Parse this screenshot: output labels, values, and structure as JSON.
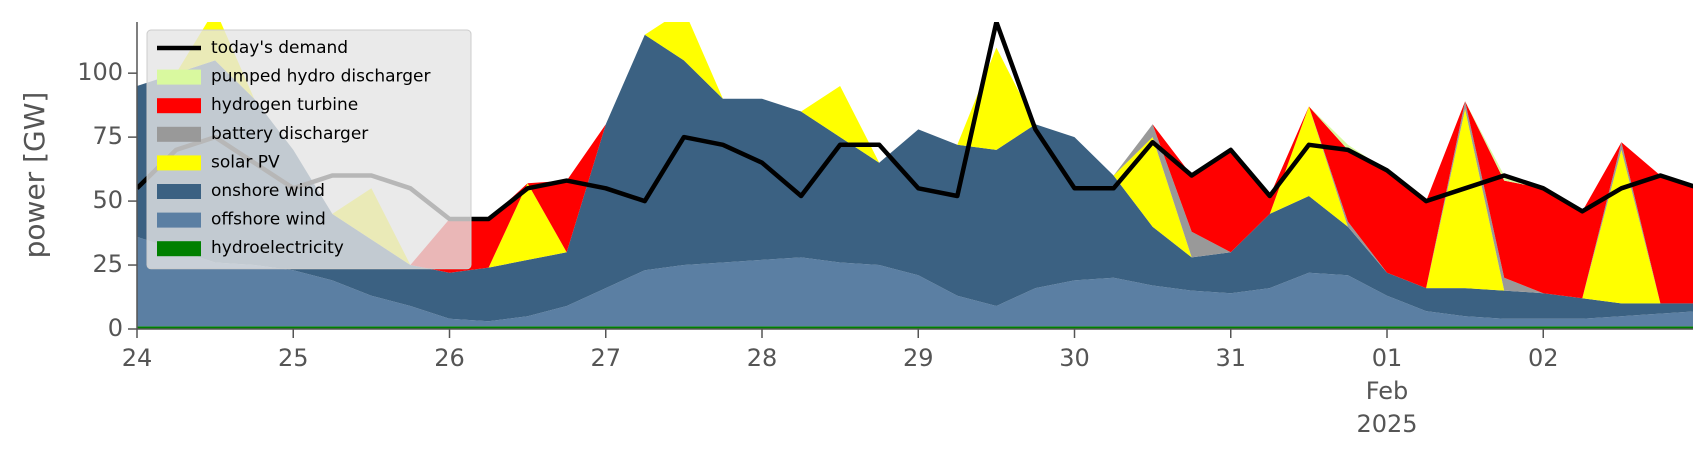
{
  "chart_data": {
    "type": "stacked-area",
    "ylabel": "power [GW]",
    "x": [
      "2025-01-24T00:00",
      "2025-01-24T06:00",
      "2025-01-24T12:00",
      "2025-01-24T18:00",
      "2025-01-25T00:00",
      "2025-01-25T06:00",
      "2025-01-25T12:00",
      "2025-01-25T18:00",
      "2025-01-26T00:00",
      "2025-01-26T06:00",
      "2025-01-26T12:00",
      "2025-01-26T18:00",
      "2025-01-27T00:00",
      "2025-01-27T06:00",
      "2025-01-27T12:00",
      "2025-01-27T18:00",
      "2025-01-28T00:00",
      "2025-01-28T06:00",
      "2025-01-28T12:00",
      "2025-01-28T18:00",
      "2025-01-29T00:00",
      "2025-01-29T06:00",
      "2025-01-29T12:00",
      "2025-01-29T18:00",
      "2025-01-30T00:00",
      "2025-01-30T06:00",
      "2025-01-30T12:00",
      "2025-01-30T18:00",
      "2025-01-31T00:00",
      "2025-01-31T06:00",
      "2025-01-31T12:00",
      "2025-01-31T18:00",
      "2025-02-01T00:00",
      "2025-02-01T06:00",
      "2025-02-01T12:00",
      "2025-02-01T18:00",
      "2025-02-02T00:00",
      "2025-02-02T06:00",
      "2025-02-02T12:00",
      "2025-02-02T18:00",
      "2025-02-03T00:00"
    ],
    "series": [
      {
        "name": "hydroelectricity",
        "color": "#008000",
        "values": [
          1,
          1,
          1,
          1,
          1,
          1,
          1,
          1,
          1,
          1,
          1,
          1,
          1,
          1,
          1,
          1,
          1,
          1,
          1,
          1,
          1,
          1,
          1,
          1,
          1,
          1,
          1,
          1,
          1,
          1,
          1,
          1,
          1,
          1,
          1,
          1,
          1,
          1,
          1,
          1,
          1
        ]
      },
      {
        "name": "offshore wind",
        "color": "#5b7fa3",
        "values": [
          35,
          30,
          25,
          24,
          22,
          18,
          12,
          8,
          3,
          2,
          4,
          8,
          15,
          22,
          24,
          25,
          26,
          27,
          25,
          24,
          20,
          12,
          8,
          15,
          18,
          19,
          16,
          14,
          13,
          15,
          21,
          20,
          12,
          6,
          4,
          3,
          3,
          3,
          4,
          5,
          6
        ]
      },
      {
        "name": "onshore wind",
        "color": "#3b6182",
        "values": [
          59,
          69,
          79,
          65,
          47,
          26,
          22,
          16,
          18,
          21,
          22,
          21,
          64,
          92,
          80,
          64,
          63,
          57,
          49,
          40,
          57,
          59,
          61,
          64,
          56,
          40,
          23,
          13,
          16,
          29,
          30,
          19,
          9,
          9,
          11,
          11,
          10,
          8,
          5,
          4,
          3
        ]
      },
      {
        "name": "solar PV",
        "color": "#ffff00",
        "values": [
          0,
          0,
          20,
          0,
          0,
          0,
          20,
          0,
          0,
          0,
          30,
          0,
          0,
          0,
          20,
          0,
          0,
          0,
          20,
          0,
          0,
          0,
          40,
          0,
          0,
          0,
          35,
          0,
          0,
          0,
          35,
          0,
          0,
          0,
          70,
          0,
          0,
          0,
          60,
          0,
          0
        ]
      },
      {
        "name": "battery discharger",
        "color": "#999999",
        "values": [
          0,
          0,
          0,
          0,
          0,
          0,
          0,
          0,
          0,
          0,
          0,
          0,
          0,
          0,
          0,
          0,
          0,
          0,
          0,
          0,
          0,
          0,
          0,
          0,
          0,
          0,
          5,
          10,
          0,
          0,
          0,
          2,
          0,
          0,
          3,
          5,
          0,
          0,
          3,
          0,
          0
        ]
      },
      {
        "name": "hydrogen turbine",
        "color": "#ff0000",
        "values": [
          0,
          0,
          0,
          0,
          0,
          0,
          0,
          0,
          21,
          19,
          0,
          28,
          0,
          0,
          0,
          0,
          0,
          0,
          0,
          0,
          0,
          0,
          0,
          0,
          0,
          0,
          0,
          22,
          40,
          7,
          0,
          28,
          40,
          34,
          0,
          38,
          41,
          34,
          0,
          50,
          45
        ]
      },
      {
        "name": "pumped hydro discharger",
        "color": "#d9f99f",
        "values": [
          0,
          0,
          0,
          0,
          0,
          0,
          0,
          0,
          0,
          0,
          0,
          0,
          0,
          0,
          0,
          0,
          0,
          0,
          0,
          0,
          0,
          0,
          0,
          0,
          0,
          0,
          0,
          0,
          0,
          0,
          0,
          2,
          0,
          0,
          0,
          2,
          0,
          0,
          0,
          0,
          0
        ]
      }
    ],
    "line": {
      "name": "today's demand",
      "color": "#000000",
      "values": [
        55,
        70,
        75,
        65,
        55,
        60,
        60,
        55,
        43,
        43,
        55,
        58,
        55,
        50,
        75,
        72,
        65,
        52,
        72,
        72,
        55,
        52,
        120,
        78,
        55,
        55,
        73,
        60,
        70,
        52,
        72,
        70,
        62,
        50,
        55,
        60,
        55,
        46,
        55,
        60,
        55
      ]
    },
    "xlim": [
      "2025-01-24T00:00",
      "2025-02-02T23:00"
    ],
    "xticks": [
      {
        "value": "2025-01-24T00:00",
        "label": "24"
      },
      {
        "value": "2025-01-25T00:00",
        "label": "25"
      },
      {
        "value": "2025-01-26T00:00",
        "label": "26"
      },
      {
        "value": "2025-01-27T00:00",
        "label": "27"
      },
      {
        "value": "2025-01-28T00:00",
        "label": "28"
      },
      {
        "value": "2025-01-29T00:00",
        "label": "29"
      },
      {
        "value": "2025-01-30T00:00",
        "label": "30"
      },
      {
        "value": "2025-01-31T00:00",
        "label": "31"
      },
      {
        "value": "2025-02-01T00:00",
        "label": "01"
      },
      {
        "value": "2025-02-02T00:00",
        "label": "02"
      }
    ],
    "x_period_label": {
      "tick": 8,
      "lines": [
        "Feb",
        "2025"
      ]
    },
    "ylim": [
      0,
      120
    ],
    "yticks": [
      0,
      25,
      50,
      75,
      100
    ],
    "grid": false,
    "legend": "upper left"
  }
}
